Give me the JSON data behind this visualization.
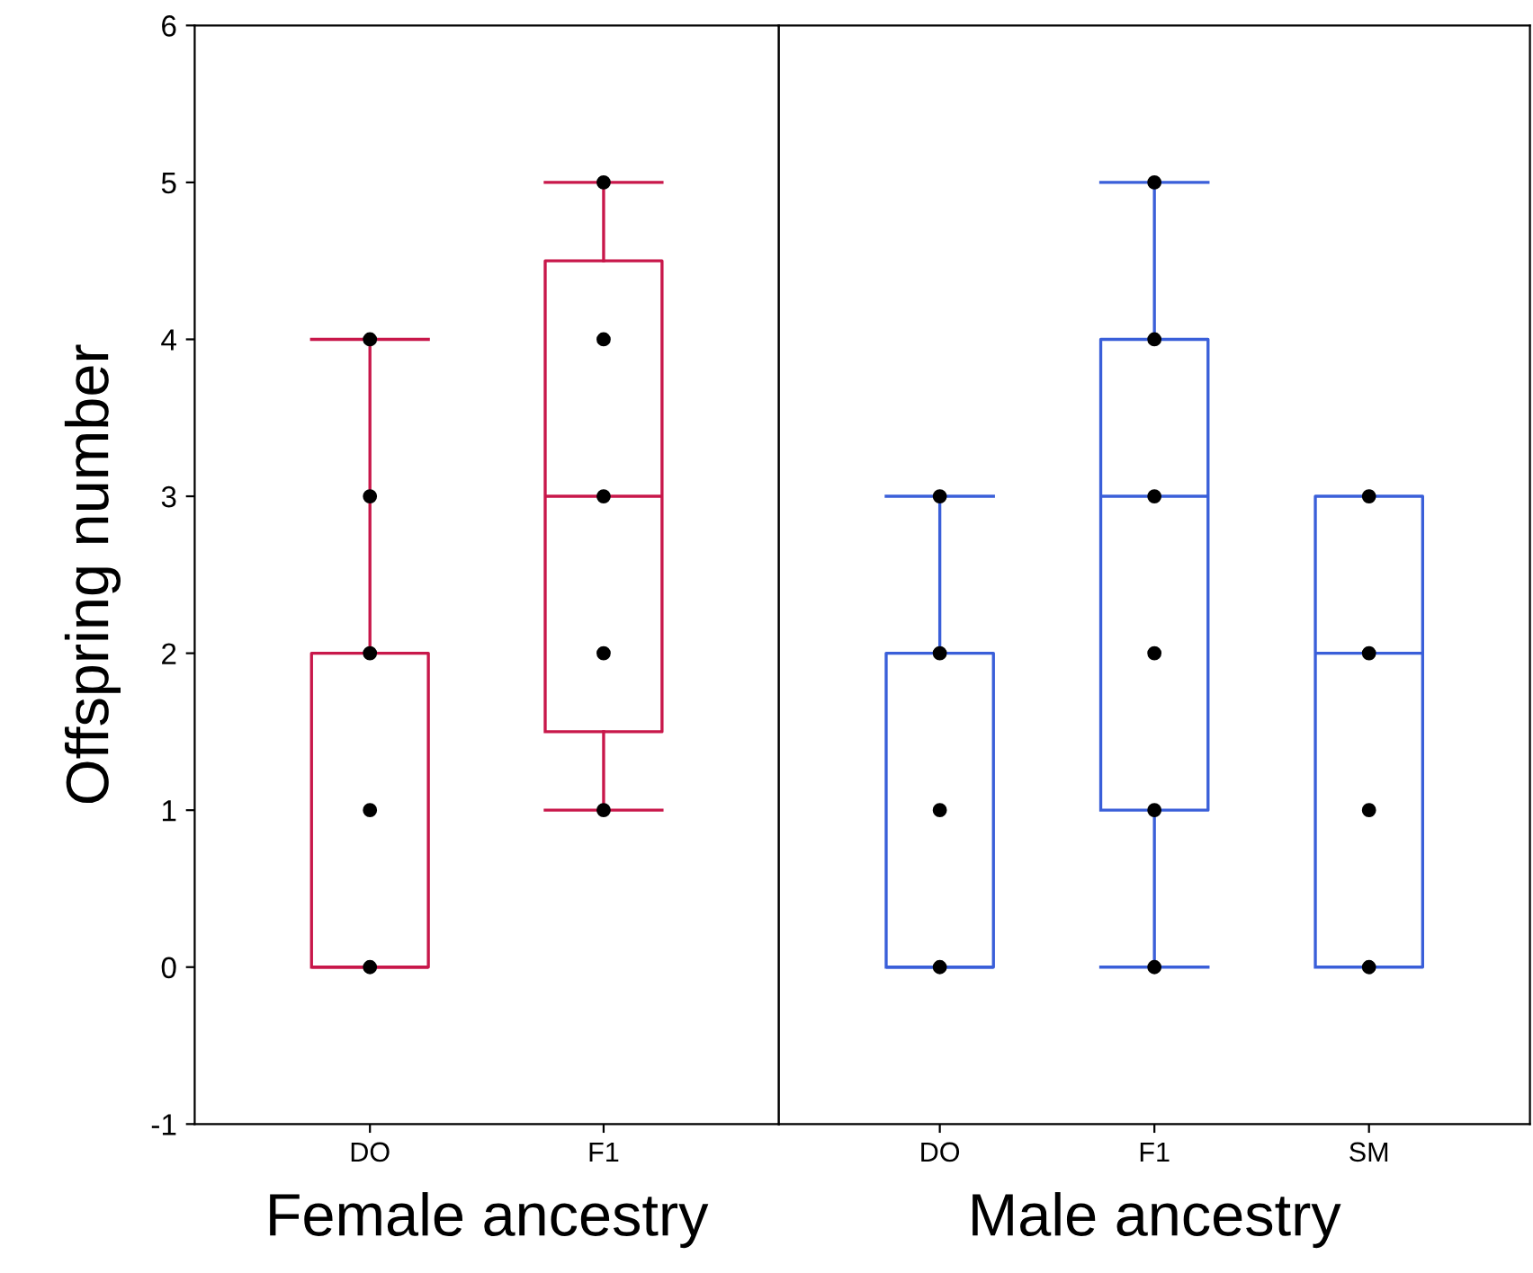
{
  "chart_data": [
    {
      "type": "box",
      "xlabel": "Female ancestry",
      "ylabel": "Offspring number",
      "categories": [
        "DO",
        "F1"
      ],
      "ylim": [
        -1,
        6
      ],
      "yticks": [
        -1,
        0,
        1,
        2,
        3,
        4,
        5,
        6
      ],
      "series": [
        {
          "color": "#c8174a",
          "boxes": [
            {
              "low": 0,
              "q1": 0,
              "median": 0,
              "q3": 2,
              "high": 4
            },
            {
              "low": 1,
              "q1": 1.5,
              "median": 3,
              "q3": 4.5,
              "high": 5
            }
          ]
        },
        {
          "type": "scatter",
          "color": "#000000",
          "x": [
            "DO",
            "DO",
            "DO",
            "DO",
            "DO",
            "F1",
            "F1",
            "F1",
            "F1",
            "F1"
          ],
          "values": [
            0,
            1,
            2,
            3,
            4,
            1,
            2,
            3,
            4,
            5
          ]
        }
      ]
    },
    {
      "type": "box",
      "xlabel": "Male ancestry",
      "categories": [
        "DO",
        "F1",
        "SM"
      ],
      "ylim": [
        -1,
        6
      ],
      "tick_labels": "x",
      "series": [
        {
          "color": "#3a5fd9",
          "boxes": [
            {
              "low": 0,
              "q1": 0,
              "median": 0,
              "q3": 2,
              "high": 3
            },
            {
              "low": 0,
              "q1": 1,
              "median": 3,
              "q3": 4,
              "high": 5
            },
            {
              "low": 0,
              "q1": 0,
              "median": 2,
              "q3": 3,
              "high": 3
            }
          ]
        },
        {
          "type": "scatter",
          "color": "#000000",
          "x": [
            "DO",
            "DO",
            "DO",
            "DO",
            "F1",
            "F1",
            "F1",
            "F1",
            "F1",
            "F1",
            "SM",
            "SM",
            "SM",
            "SM"
          ],
          "values": [
            0,
            1,
            2,
            3,
            0,
            1,
            2,
            3,
            4,
            5,
            0,
            1,
            2,
            3
          ]
        }
      ]
    }
  ]
}
